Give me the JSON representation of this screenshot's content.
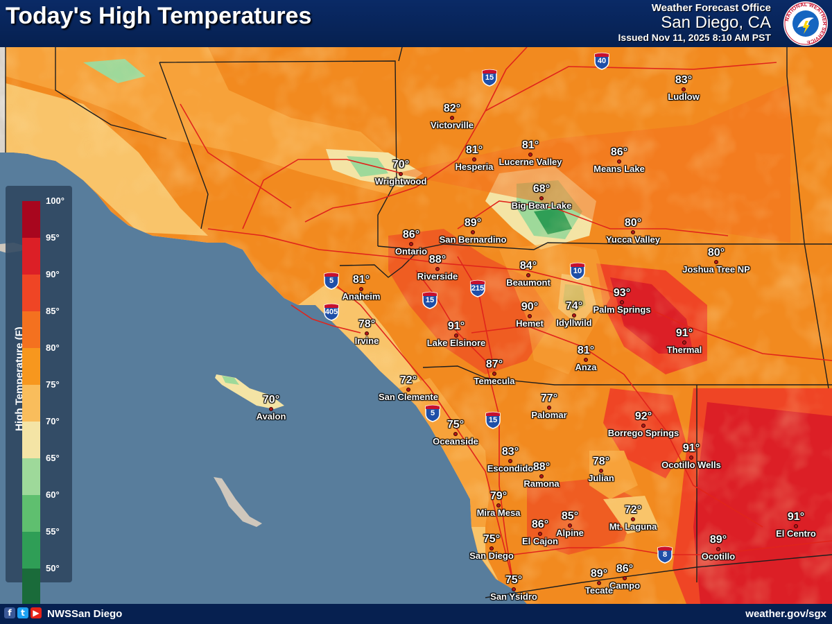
{
  "title": "Today's High Temperatures",
  "office": {
    "line1": "Weather Forecast Office",
    "line2": "San Diego, CA",
    "issued": "Issued Nov 11, 2025 8:10 AM PST",
    "logo_text": "NATIONAL WEATHER SERVICE"
  },
  "legend": {
    "title": "High Temperature (F)",
    "labels": [
      "100°",
      "95°",
      "90°",
      "85°",
      "80°",
      "75°",
      "70°",
      "65°",
      "60°",
      "55°",
      "50°"
    ],
    "colors": [
      "#a8061e",
      "#dc1f26",
      "#ef4525",
      "#f4711f",
      "#f7971e",
      "#f9bd5c",
      "#f4e4a5",
      "#9ed99a",
      "#5fbf6f",
      "#2f9e56",
      "#1a6b3a"
    ]
  },
  "cities": [
    {
      "name": "Ludlow",
      "temp": "83°",
      "color": "#f4711f"
    },
    {
      "name": "Victorville",
      "temp": "82°",
      "color": "#f4711f"
    },
    {
      "name": "Hesperia",
      "temp": "81°",
      "color": "#f4711f"
    },
    {
      "name": "Lucerne Valley",
      "temp": "81°",
      "color": "#f4711f"
    },
    {
      "name": "Means Lake",
      "temp": "86°",
      "color": "#ef4525"
    },
    {
      "name": "Wrightwood",
      "temp": "70°",
      "color": "#f4e4a5"
    },
    {
      "name": "Big Bear Lake",
      "temp": "68°",
      "color": "#9ed99a"
    },
    {
      "name": "Yucca Valley",
      "temp": "80°",
      "color": "#f7971e"
    },
    {
      "name": "Joshua Tree NP",
      "temp": "80°",
      "color": "#f7971e"
    },
    {
      "name": "Ontario",
      "temp": "86°",
      "color": "#ef4525"
    },
    {
      "name": "San Bernardino",
      "temp": "89°",
      "color": "#ef4525"
    },
    {
      "name": "Riverside",
      "temp": "88°",
      "color": "#ef4525"
    },
    {
      "name": "Beaumont",
      "temp": "84°",
      "color": "#f4711f"
    },
    {
      "name": "Anaheim",
      "temp": "81°",
      "color": "#f4711f"
    },
    {
      "name": "Palm Springs",
      "temp": "93°",
      "color": "#dc1f26"
    },
    {
      "name": "Hemet",
      "temp": "90°",
      "color": "#dc1f26"
    },
    {
      "name": "Idyllwild",
      "temp": "74°",
      "color": "#f4e4a5"
    },
    {
      "name": "Irvine",
      "temp": "78°",
      "color": "#f9bd5c"
    },
    {
      "name": "Lake Elsinore",
      "temp": "91°",
      "color": "#dc1f26"
    },
    {
      "name": "Thermal",
      "temp": "91°",
      "color": "#dc1f26"
    },
    {
      "name": "Anza",
      "temp": "81°",
      "color": "#f4711f"
    },
    {
      "name": "Temecula",
      "temp": "87°",
      "color": "#ef4525"
    },
    {
      "name": "San Clemente",
      "temp": "72°",
      "color": "#f4e4a5"
    },
    {
      "name": "Avalon",
      "temp": "70°",
      "color": "#f4e4a5"
    },
    {
      "name": "Palomar",
      "temp": "77°",
      "color": "#f9bd5c"
    },
    {
      "name": "Borrego Springs",
      "temp": "92°",
      "color": "#dc1f26"
    },
    {
      "name": "Oceanside",
      "temp": "75°",
      "color": "#f9bd5c"
    },
    {
      "name": "Ocotillo Wells",
      "temp": "91°",
      "color": "#dc1f26"
    },
    {
      "name": "Escondido",
      "temp": "83°",
      "color": "#f4711f"
    },
    {
      "name": "Ramona",
      "temp": "88°",
      "color": "#ef4525"
    },
    {
      "name": "Julian",
      "temp": "78°",
      "color": "#f9bd5c"
    },
    {
      "name": "Mira Mesa",
      "temp": "79°",
      "color": "#f9bd5c"
    },
    {
      "name": "El Cajon",
      "temp": "86°",
      "color": "#ef4525"
    },
    {
      "name": "Alpine",
      "temp": "85°",
      "color": "#ef4525"
    },
    {
      "name": "Mt. Laguna",
      "temp": "72°",
      "color": "#f4e4a5"
    },
    {
      "name": "El Centro",
      "temp": "91°",
      "color": "#dc1f26"
    },
    {
      "name": "Ocotillo",
      "temp": "89°",
      "color": "#ef4525"
    },
    {
      "name": "San Diego",
      "temp": "75°",
      "color": "#f9bd5c"
    },
    {
      "name": "Campo",
      "temp": "86°",
      "color": "#ef4525"
    },
    {
      "name": "Tecate",
      "temp": "89°",
      "color": "#ef4525"
    },
    {
      "name": "San Ysidro",
      "temp": "75°",
      "color": "#f9bd5c"
    }
  ],
  "shields": [
    "15",
    "40",
    "10",
    "215",
    "5",
    "15",
    "405",
    "5",
    "15",
    "8"
  ],
  "footer": {
    "handle": "NWSSan Diego",
    "website": "weather.gov/sgx",
    "social": [
      "f",
      "t",
      "▶"
    ]
  },
  "colors": {
    "ocean": "#587d9c",
    "land_base": "#f28a1f",
    "relief": "#cfc7bc",
    "highway": "#e0241b",
    "county_line": "#1e1e1e"
  }
}
